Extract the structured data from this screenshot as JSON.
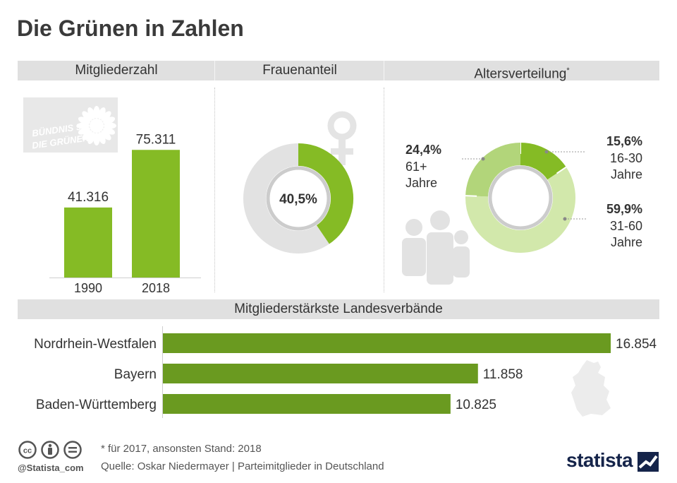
{
  "title": "Die Grünen in Zahlen",
  "sections": {
    "members": "Mitgliederzahl",
    "women": "Frauenanteil",
    "age": "Altersverteilung",
    "age_mark": "*",
    "states": "Mitgliederstärkste Landesverbände"
  },
  "logo": {
    "line1": "BÜNDNIS 90",
    "line2": "DIE GRÜNEN",
    "icon": "sunflower-icon"
  },
  "colors": {
    "green": "#85bb25",
    "dark_green": "#6a9a20",
    "light_green": "#b2d57a",
    "pale_green": "#d2e8ab",
    "gray": "#e2e2e2",
    "band": "#e0e0e0",
    "statista": "#15244a"
  },
  "chart_data": [
    {
      "type": "bar",
      "title": "Mitgliederzahl",
      "categories": [
        "1990",
        "2018"
      ],
      "values": [
        41316,
        75311
      ],
      "value_labels": [
        "41.316",
        "75.311"
      ]
    },
    {
      "type": "pie",
      "title": "Frauenanteil",
      "values": [
        40.5,
        59.5
      ],
      "center_label": "40,5%",
      "icon": "female-symbol-icon"
    },
    {
      "type": "pie",
      "title": "Altersverteilung",
      "categories": [
        "16-30 Jahre",
        "31-60 Jahre",
        "61+ Jahre"
      ],
      "values": [
        15.6,
        59.9,
        24.4
      ],
      "labels": [
        {
          "pct": "15,6%",
          "line1": "16-30",
          "line2": "Jahre"
        },
        {
          "pct": "59,9%",
          "line1": "31-60",
          "line2": "Jahre"
        },
        {
          "pct": "24,4%",
          "line1": "61+",
          "line2": "Jahre"
        }
      ],
      "icon": "family-icon"
    },
    {
      "type": "bar",
      "orientation": "horizontal",
      "title": "Mitgliederstärkste Landesverbände",
      "categories": [
        "Nordrhein-Westfalen",
        "Bayern",
        "Baden-Württemberg"
      ],
      "values": [
        16854,
        11858,
        10825
      ],
      "value_labels": [
        "16.854",
        "11.858",
        "10.825"
      ],
      "icon": "germany-map-icon"
    }
  ],
  "footer": {
    "note": "* für 2017, ansonsten Stand: 2018",
    "source": "Quelle: Oskar Niedermayer | Parteimitglieder in Deutschland",
    "handle": "@Statista_com",
    "license_icons": [
      "cc-icon",
      "by-icon",
      "nd-icon"
    ],
    "brand": "statista"
  }
}
